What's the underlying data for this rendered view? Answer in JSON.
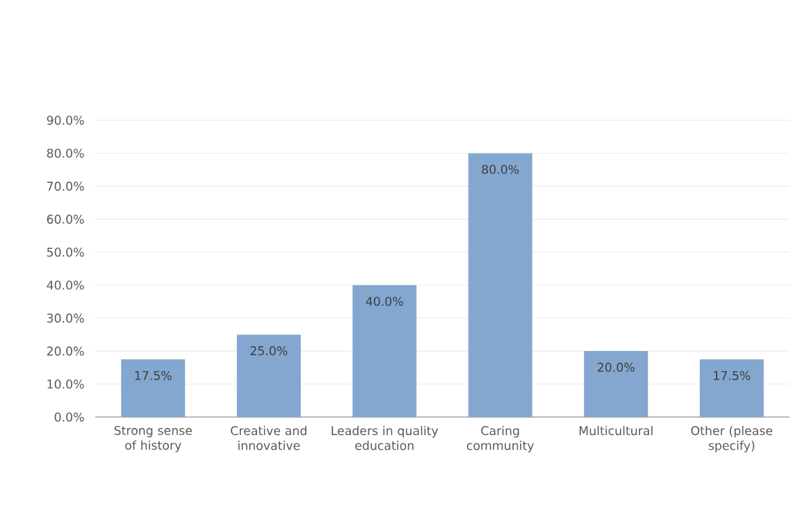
{
  "chart_data": {
    "type": "bar",
    "categories": [
      "Strong sense of history",
      "Creative and innovative",
      "Leaders in quality education",
      "Caring community",
      "Multicultural",
      "Other (please specify)"
    ],
    "values": [
      17.5,
      25,
      40,
      80,
      20,
      17.5
    ],
    "value_labels": [
      "17.5%",
      "25.0%",
      "40.0%",
      "80.0%",
      "20.0%",
      "17.5%"
    ],
    "color": "#84a7d0",
    "ylim": [
      0,
      90
    ],
    "yticks": [
      {
        "value": 0,
        "label": "0.0%"
      },
      {
        "value": 10,
        "label": "10.0%"
      },
      {
        "value": 20,
        "label": "20.0%"
      },
      {
        "value": 30,
        "label": "30.0%"
      },
      {
        "value": 40,
        "label": "40.0%"
      },
      {
        "value": 50,
        "label": "50.0%"
      },
      {
        "value": 60,
        "label": "60.0%"
      },
      {
        "value": 70,
        "label": "70.0%"
      },
      {
        "value": 80,
        "label": "80.0%"
      },
      {
        "value": 90,
        "label": "90.0%"
      }
    ],
    "grid": "y"
  }
}
